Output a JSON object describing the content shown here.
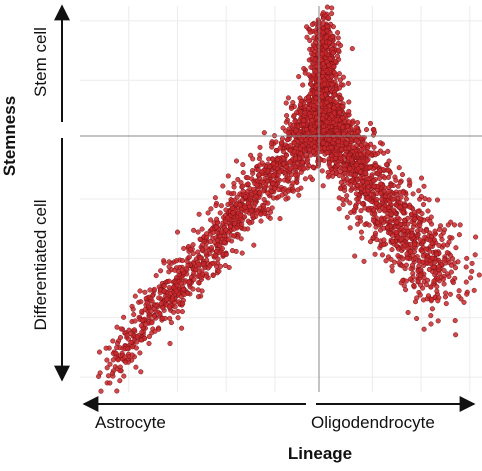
{
  "chart_data": {
    "type": "scatter",
    "xlabel": "Lineage",
    "ylabel": "Stemness",
    "x_axis_labels": {
      "negative": "Astrocyte",
      "positive": "Oligodendrocyte"
    },
    "y_axis_labels": {
      "positive": "Stem cell",
      "negative": "Differentiated cell"
    },
    "xlim": [
      -1.0,
      0.65
    ],
    "ylim": [
      -0.85,
      0.45
    ],
    "grid": true,
    "axis_lines_at_zero": true,
    "point_color": "#c8282c",
    "point_edge_color": "#7a1216",
    "approx_point_count": 3500,
    "series": [
      {
        "branch": "Astrocyte",
        "approx_count": 1300,
        "shape": "diagonal band from bottom-left to the apex near (0, 0.1)",
        "trend": [
          {
            "x": -0.9,
            "y": -0.8
          },
          {
            "x": -0.7,
            "y": -0.58
          },
          {
            "x": -0.5,
            "y": -0.4
          },
          {
            "x": -0.3,
            "y": -0.2
          },
          {
            "x": -0.12,
            "y": -0.06
          },
          {
            "x": -0.02,
            "y": 0.1
          }
        ]
      },
      {
        "branch": "Stem apex",
        "approx_count": 900,
        "shape": "dense vertical column near x = 0",
        "trend": [
          {
            "x": 0.0,
            "y": 0.0
          },
          {
            "x": 0.0,
            "y": 0.2
          },
          {
            "x": 0.0,
            "y": 0.4
          }
        ]
      },
      {
        "branch": "Oligodendrocyte",
        "approx_count": 1300,
        "shape": "band descending from the apex toward the right",
        "trend": [
          {
            "x": 0.02,
            "y": 0.05
          },
          {
            "x": 0.1,
            "y": -0.05
          },
          {
            "x": 0.2,
            "y": -0.17
          },
          {
            "x": 0.3,
            "y": -0.28
          },
          {
            "x": 0.4,
            "y": -0.38
          },
          {
            "x": 0.5,
            "y": -0.46
          }
        ]
      }
    ]
  }
}
